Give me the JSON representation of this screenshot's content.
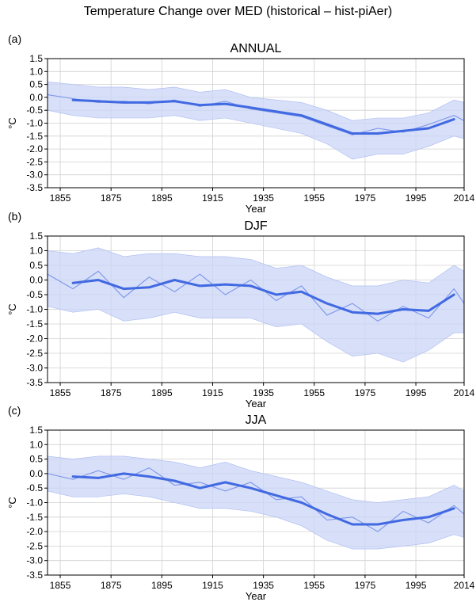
{
  "figure_title": "Temperature Change over MED (historical – hist-piAer)",
  "chart_data": [
    {
      "type": "line",
      "panel_label": "(a)",
      "title": "ANNUAL",
      "xlabel": "Year",
      "ylabel": "°C",
      "xlim": [
        1850,
        2014
      ],
      "ylim": [
        -3.5,
        1.5
      ],
      "xticks": [
        1855,
        1875,
        1895,
        1915,
        1935,
        1955,
        1975,
        1995,
        2014
      ],
      "yticks": [
        1.5,
        1.0,
        0.5,
        0.0,
        -0.5,
        -1.0,
        -1.5,
        -2.0,
        -2.5,
        -3.0,
        -3.5
      ],
      "grid": true,
      "colors": {
        "smoothed": "#4169e1",
        "annual": "#7d96ea",
        "spread": "#c9d4f7"
      },
      "x": [
        1850,
        1860,
        1870,
        1880,
        1890,
        1900,
        1910,
        1920,
        1930,
        1940,
        1950,
        1960,
        1970,
        1980,
        1990,
        2000,
        2010,
        2014
      ],
      "series": [
        {
          "values": [
            null,
            -0.1,
            -0.15,
            -0.2,
            -0.2,
            -0.15,
            -0.3,
            -0.25,
            -0.4,
            -0.55,
            -0.7,
            -1.05,
            -1.4,
            -1.4,
            -1.3,
            -1.2,
            -0.85,
            null
          ]
        },
        {
          "values": [
            0.1,
            -0.05,
            -0.2,
            -0.15,
            -0.25,
            -0.1,
            -0.35,
            -0.15,
            -0.45,
            -0.6,
            -0.75,
            -1.1,
            -1.45,
            -1.2,
            -1.35,
            -1.05,
            -0.7,
            -0.9
          ]
        }
      ],
      "band_upper": [
        0.6,
        0.5,
        0.4,
        0.4,
        0.3,
        0.4,
        0.2,
        0.3,
        0.0,
        -0.1,
        -0.2,
        -0.5,
        -0.9,
        -0.8,
        -0.8,
        -0.6,
        -0.1,
        -0.2
      ],
      "band_lower": [
        -0.5,
        -0.7,
        -0.8,
        -0.8,
        -0.8,
        -0.7,
        -0.9,
        -0.8,
        -1.0,
        -1.2,
        -1.4,
        -1.8,
        -2.4,
        -2.2,
        -2.2,
        -1.9,
        -1.5,
        -1.6
      ]
    },
    {
      "type": "line",
      "panel_label": "(b)",
      "title": "DJF",
      "xlabel": "Year",
      "ylabel": "°C",
      "xlim": [
        1850,
        2014
      ],
      "ylim": [
        -3.5,
        1.5
      ],
      "xticks": [
        1855,
        1875,
        1895,
        1915,
        1935,
        1955,
        1975,
        1995,
        2014
      ],
      "yticks": [
        1.5,
        1.0,
        0.5,
        0.0,
        -0.5,
        -1.0,
        -1.5,
        -2.0,
        -2.5,
        -3.0,
        -3.5
      ],
      "grid": true,
      "colors": {
        "smoothed": "#4169e1",
        "annual": "#7d96ea",
        "spread": "#c9d4f7"
      },
      "x": [
        1850,
        1860,
        1870,
        1880,
        1890,
        1900,
        1910,
        1920,
        1930,
        1940,
        1950,
        1960,
        1970,
        1980,
        1990,
        2000,
        2010,
        2014
      ],
      "series": [
        {
          "values": [
            null,
            -0.1,
            0.0,
            -0.3,
            -0.25,
            0.0,
            -0.2,
            -0.15,
            -0.2,
            -0.5,
            -0.4,
            -0.8,
            -1.1,
            -1.15,
            -1.0,
            -1.05,
            -0.5,
            null
          ]
        },
        {
          "values": [
            0.2,
            -0.3,
            0.3,
            -0.6,
            0.1,
            -0.4,
            0.2,
            -0.5,
            0.0,
            -0.7,
            -0.2,
            -1.2,
            -0.8,
            -1.4,
            -0.9,
            -1.3,
            -0.3,
            -0.8
          ]
        }
      ],
      "band_upper": [
        1.0,
        0.9,
        1.1,
        0.8,
        0.9,
        0.9,
        0.8,
        0.8,
        0.7,
        0.4,
        0.5,
        0.1,
        -0.2,
        -0.2,
        0.0,
        -0.1,
        0.5,
        0.3
      ],
      "band_lower": [
        -0.9,
        -1.1,
        -1.0,
        -1.4,
        -1.3,
        -1.1,
        -1.3,
        -1.3,
        -1.3,
        -1.6,
        -1.5,
        -2.1,
        -2.6,
        -2.5,
        -2.8,
        -2.4,
        -1.8,
        -1.8
      ]
    },
    {
      "type": "line",
      "panel_label": "(c)",
      "title": "JJA",
      "xlabel": "Year",
      "ylabel": "°C",
      "xlim": [
        1850,
        2014
      ],
      "ylim": [
        -3.5,
        1.5
      ],
      "xticks": [
        1855,
        1875,
        1895,
        1915,
        1935,
        1955,
        1975,
        1995,
        2014
      ],
      "yticks": [
        1.5,
        1.0,
        0.5,
        0.0,
        -0.5,
        -1.0,
        -1.5,
        -2.0,
        -2.5,
        -3.0,
        -3.5
      ],
      "grid": true,
      "colors": {
        "smoothed": "#4169e1",
        "annual": "#7d96ea",
        "spread": "#c9d4f7"
      },
      "x": [
        1850,
        1860,
        1870,
        1880,
        1890,
        1900,
        1910,
        1920,
        1930,
        1940,
        1950,
        1960,
        1970,
        1980,
        1990,
        2000,
        2010,
        2014
      ],
      "series": [
        {
          "values": [
            null,
            -0.1,
            -0.15,
            0.0,
            -0.1,
            -0.25,
            -0.5,
            -0.3,
            -0.5,
            -0.75,
            -1.0,
            -1.4,
            -1.75,
            -1.75,
            -1.6,
            -1.5,
            -1.2,
            null
          ]
        },
        {
          "values": [
            0.0,
            -0.2,
            0.1,
            -0.2,
            0.2,
            -0.4,
            -0.3,
            -0.6,
            -0.3,
            -0.9,
            -0.8,
            -1.6,
            -1.5,
            -2.0,
            -1.3,
            -1.7,
            -1.1,
            -1.4
          ]
        }
      ],
      "band_upper": [
        0.6,
        0.5,
        0.6,
        0.6,
        0.5,
        0.4,
        0.2,
        0.4,
        0.1,
        -0.1,
        -0.3,
        -0.6,
        -0.9,
        -1.0,
        -0.9,
        -0.8,
        -0.4,
        -0.6
      ],
      "band_lower": [
        -0.6,
        -0.8,
        -0.8,
        -0.7,
        -0.8,
        -1.0,
        -1.2,
        -1.2,
        -1.3,
        -1.5,
        -1.8,
        -2.3,
        -2.6,
        -2.6,
        -2.5,
        -2.4,
        -2.1,
        -2.2
      ]
    }
  ]
}
